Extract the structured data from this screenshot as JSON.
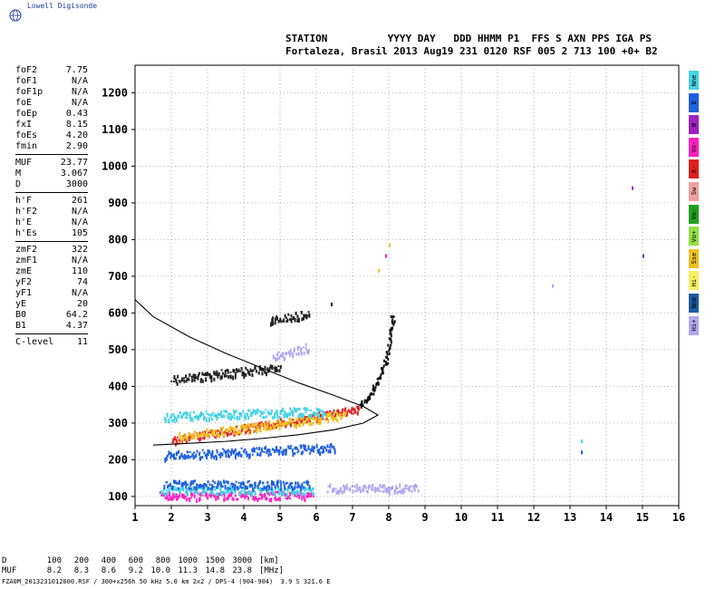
{
  "logo": {
    "text": "Lowell Digisonde"
  },
  "header": {
    "line1": "STATION          YYYY DAY   DDD HHMM P1  FFS S AXN PPS IGA PS",
    "line2": "Fortaleza, Brasil 2013 Aug19 231 0120 RSF 005 2 713 100 +0+ B2"
  },
  "params": [
    {
      "k": "foF2",
      "v": "7.75"
    },
    {
      "k": "foF1",
      "v": "N/A"
    },
    {
      "k": "foF1p",
      "v": "N/A"
    },
    {
      "k": "foE",
      "v": "N/A"
    },
    {
      "k": "foEp",
      "v": "0.43"
    },
    {
      "k": "fxI",
      "v": "8.15"
    },
    {
      "k": "foEs",
      "v": "4.20"
    },
    {
      "k": "fmin",
      "v": "2.90"
    },
    {
      "k": "MUF",
      "v": "23.77"
    },
    {
      "k": "M",
      "v": "3.067"
    },
    {
      "k": "D",
      "v": "3000"
    },
    {
      "k": "h'F",
      "v": "261"
    },
    {
      "k": "h'F2",
      "v": "N/A"
    },
    {
      "k": "h'E",
      "v": "N/A"
    },
    {
      "k": "h'Es",
      "v": "105"
    },
    {
      "k": "zmF2",
      "v": "322"
    },
    {
      "k": "zmF1",
      "v": "N/A"
    },
    {
      "k": "zmE",
      "v": "110"
    },
    {
      "k": "yF2",
      "v": "74"
    },
    {
      "k": "yF1",
      "v": "N/A"
    },
    {
      "k": "yE",
      "v": "20"
    },
    {
      "k": "B0",
      "v": "64.2"
    },
    {
      "k": "B1",
      "v": "4.37"
    },
    {
      "k": "C-level",
      "v": "11"
    }
  ],
  "legend": [
    {
      "label": "Nne",
      "color": "#44d2e6"
    },
    {
      "label": "E",
      "color": "#2060e0"
    },
    {
      "label": "W",
      "color": "#a020c0"
    },
    {
      "label": "Vo-",
      "color": "#ff20c0"
    },
    {
      "label": "X-",
      "color": "#e02020"
    },
    {
      "label": "Sw",
      "color": "#f0a0a0"
    },
    {
      "label": "Vo-",
      "color": "#20a020"
    },
    {
      "label": "Vo+",
      "color": "#90e040"
    },
    {
      "label": "Sse",
      "color": "#f0c020"
    },
    {
      "label": "Hi-",
      "color": "#f8f060"
    },
    {
      "label": "Nne",
      "color": "#1c5aa0"
    },
    {
      "label": "Hi+",
      "color": "#b0a8f0"
    }
  ],
  "bottom": {
    "d_label": "D",
    "d_vals": [
      "100",
      "200",
      "400",
      "600",
      "800",
      "1000",
      "1500",
      "3000"
    ],
    "d_unit": "[km]",
    "muf_label": "MUF",
    "muf_vals": [
      "8.2",
      "8.3",
      "8.6",
      "9.2",
      "10.0",
      "11.3",
      "14.8",
      "23.8"
    ],
    "muf_unit": "[MHz]",
    "footer": "FZA0M_2013231012000.RSF / 300+x256h 50 kHz 5.0 km 2x2 / DPS-4 (904-904)  3.9 S 321.6 E"
  },
  "chart_data": {
    "type": "scatter",
    "x": {
      "min": 1,
      "max": 16,
      "ticks": [
        1,
        2,
        3,
        4,
        5,
        6,
        7,
        8,
        9,
        10,
        11,
        12,
        13,
        14,
        15,
        16
      ]
    },
    "y": {
      "min": 75,
      "max": 1275,
      "ticks": [
        100,
        200,
        300,
        400,
        500,
        600,
        700,
        800,
        900,
        1000,
        1100,
        1200
      ]
    },
    "grid": "dotted",
    "profile_curve": [
      [
        0.8,
        655
      ],
      [
        1.5,
        590
      ],
      [
        2.5,
        535
      ],
      [
        3.5,
        490
      ],
      [
        4.5,
        450
      ],
      [
        5.5,
        410
      ],
      [
        6.5,
        375
      ],
      [
        7.3,
        345
      ],
      [
        7.7,
        322
      ],
      [
        7.3,
        300
      ],
      [
        6.5,
        282
      ],
      [
        5.5,
        268
      ],
      [
        4.5,
        258
      ],
      [
        3.5,
        250
      ],
      [
        2.5,
        245
      ],
      [
        1.5,
        240
      ]
    ],
    "groups": [
      {
        "name": "E-layer echo",
        "color": "#ff20c0",
        "x0": 1.7,
        "x1": 5.9,
        "h0": 105,
        "h1": 105
      },
      {
        "name": "E-layer echo",
        "color": "#44d2e6",
        "x0": 1.7,
        "x1": 5.9,
        "h0": 120,
        "h1": 120
      },
      {
        "name": "E-layer echo",
        "color": "#2060e0",
        "x0": 1.8,
        "x1": 5.8,
        "h0": 135,
        "h1": 135
      },
      {
        "name": "E-layer echo",
        "color": "#b0a8f0",
        "x0": 6.3,
        "x1": 8.8,
        "h0": 125,
        "h1": 125
      },
      {
        "name": "F-trace",
        "color": "#e02020",
        "x0": 2.0,
        "x1": 7.2,
        "h0": 255,
        "h1": 340
      },
      {
        "name": "F-trace",
        "color": "#f0c020",
        "x0": 2.2,
        "x1": 6.8,
        "h0": 265,
        "h1": 325
      },
      {
        "name": "F-trace",
        "color": "#2060e0",
        "x0": 1.8,
        "x1": 6.5,
        "h0": 215,
        "h1": 235
      },
      {
        "name": "F-trace",
        "color": "#44d2e6",
        "x0": 1.8,
        "x1": 6.2,
        "h0": 320,
        "h1": 335
      },
      {
        "name": "F2 multihop",
        "color": "#222222",
        "x0": 2.0,
        "x1": 5.0,
        "h0": 420,
        "h1": 455
      },
      {
        "name": "F2 multihop",
        "color": "#b0a8f0",
        "x0": 4.8,
        "x1": 5.8,
        "h0": 480,
        "h1": 510
      },
      {
        "name": "F2 multihop",
        "color": "#222222",
        "x0": 4.7,
        "x1": 5.8,
        "h0": 580,
        "h1": 600
      }
    ],
    "cusp": {
      "color": "#111111",
      "pts": [
        [
          7.2,
          350
        ],
        [
          7.5,
          380
        ],
        [
          7.7,
          420
        ],
        [
          7.9,
          470
        ],
        [
          8.05,
          540
        ],
        [
          8.1,
          600
        ]
      ]
    },
    "isolated": [
      {
        "x": 14.7,
        "y": 945,
        "color": "#a020c0"
      },
      {
        "x": 15.0,
        "y": 760,
        "color": "#1c5aa0"
      },
      {
        "x": 12.5,
        "y": 678,
        "color": "#b0a8f0"
      },
      {
        "x": 13.3,
        "y": 255,
        "color": "#44d2e6"
      },
      {
        "x": 13.3,
        "y": 225,
        "color": "#2060e0"
      },
      {
        "x": 7.7,
        "y": 720,
        "color": "#f0c020"
      },
      {
        "x": 8.0,
        "y": 790,
        "color": "#f0c020"
      },
      {
        "x": 7.9,
        "y": 760,
        "color": "#ff20c0"
      },
      {
        "x": 6.4,
        "y": 628,
        "color": "#111111"
      }
    ]
  }
}
